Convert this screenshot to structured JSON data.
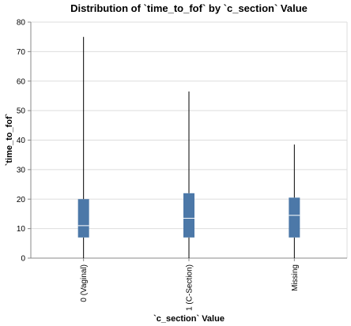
{
  "chart_data": {
    "type": "boxplot",
    "title": "Distribution of `time_to_fof` by `c_section` Value",
    "xlabel": "`c_section` Value",
    "ylabel": "`time_to_fof`",
    "ylim": [
      0,
      80
    ],
    "yticks": [
      0,
      10,
      20,
      30,
      40,
      50,
      60,
      70,
      80
    ],
    "grid": true,
    "box_color": "#4c78a8",
    "categories": [
      "0 (Vaginal)",
      "1 (C-Section)",
      "Missing"
    ],
    "boxes": [
      {
        "category": "0 (Vaginal)",
        "min": 0,
        "q1": 7,
        "median": 11,
        "q3": 20,
        "max": 75
      },
      {
        "category": "1 (C-Section)",
        "min": 0,
        "q1": 7,
        "median": 13.5,
        "q3": 22,
        "max": 56.5
      },
      {
        "category": "Missing",
        "min": 0,
        "q1": 7,
        "median": 14.5,
        "q3": 20.5,
        "max": 38.5
      }
    ]
  }
}
